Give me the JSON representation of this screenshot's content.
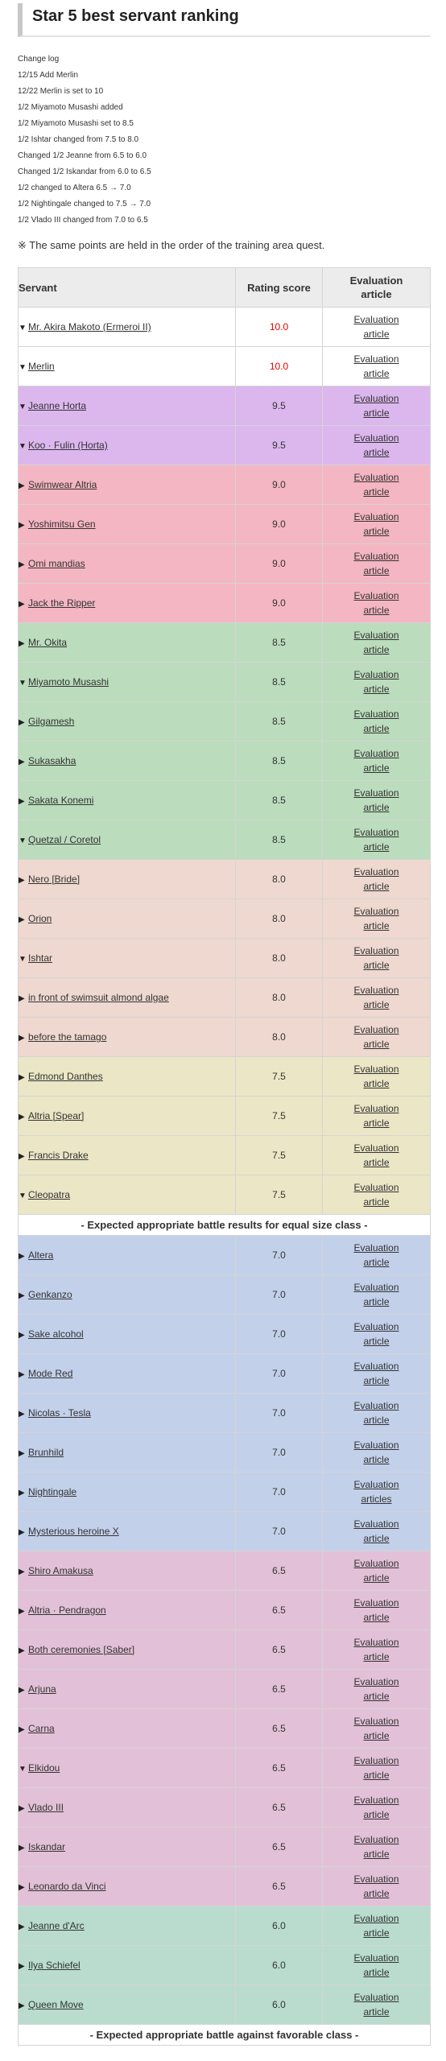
{
  "title": "Star 5 best servant ranking",
  "changelog": [
    "Change log",
    "12/15 Add Merlin",
    "12/22 Merlin is set to 10",
    "1/2 Miyamoto Musashi added",
    "1/2 Miyamoto Musashi set to 8.5",
    "1/2 Ishtar changed from 7.5 to 8.0",
    "Changed 1/2 Jeanne from 6.5 to 6.0",
    "Changed 1/2 Iskandar from 6.0 to 6.5",
    "1/2 changed to Altera 6.5 → 7.0",
    "1/2 Nightingale changed to 7.5 → 7.0",
    "1/2 Vlado III changed from 7.0 to 6.5"
  ],
  "note": "※ The same points are held in the order of the training area quest.",
  "table": {
    "headers": {
      "servant": "Servant",
      "score": "Rating score",
      "eval_line1": "Evaluation",
      "eval_line2": "article"
    },
    "rows": [
      {
        "type": "servant",
        "name": "Mr. Akira Makoto (Ermeroi II)",
        "score": "10.0",
        "open": true,
        "bg": "#ffffff",
        "red": true,
        "eval1": "Evaluation",
        "eval2": "article"
      },
      {
        "type": "servant",
        "name": "Merlin",
        "score": "10.0",
        "open": true,
        "bg": "#ffffff",
        "red": true,
        "eval1": "Evaluation",
        "eval2": "article"
      },
      {
        "type": "servant",
        "name": "Jeanne Horta",
        "score": "9.5",
        "open": true,
        "bg": "#dcb7ee",
        "eval1": "Evaluation",
        "eval2": "article"
      },
      {
        "type": "servant",
        "name": "Koo · Fulin (Horta)",
        "score": "9.5",
        "open": true,
        "bg": "#dcb7ee",
        "eval1": "Evaluation",
        "eval2": "article"
      },
      {
        "type": "servant",
        "name": "Swimwear Altria",
        "score": "9.0",
        "open": false,
        "bg": "#f4b6c2",
        "eval1": "Evaluation",
        "eval2": "article"
      },
      {
        "type": "servant",
        "name": "Yoshimitsu Gen",
        "score": "9.0",
        "open": false,
        "bg": "#f4b6c2",
        "eval1": "Evaluation",
        "eval2": "article"
      },
      {
        "type": "servant",
        "name": "Omi mandias",
        "score": "9.0",
        "open": false,
        "bg": "#f4b6c2",
        "eval1": "Evaluation",
        "eval2": "article"
      },
      {
        "type": "servant",
        "name": "Jack the Ripper",
        "score": "9.0",
        "open": false,
        "bg": "#f4b6c2",
        "eval1": "Evaluation",
        "eval2": "article"
      },
      {
        "type": "servant",
        "name": "Mr. Okita",
        "score": "8.5",
        "open": false,
        "bg": "#bbdcbd",
        "eval1": "Evaluation",
        "eval2": "article"
      },
      {
        "type": "servant",
        "name": "Miyamoto Musashi",
        "score": "8.5",
        "open": true,
        "bg": "#bbdcbd",
        "eval1": "Evaluation",
        "eval2": "article"
      },
      {
        "type": "servant",
        "name": "Gilgamesh",
        "score": "8.5",
        "open": false,
        "bg": "#bbdcbd",
        "eval1": "Evaluation",
        "eval2": "article"
      },
      {
        "type": "servant",
        "name": "Sukasakha",
        "score": "8.5",
        "open": false,
        "bg": "#bbdcbd",
        "eval1": "Evaluation",
        "eval2": "article"
      },
      {
        "type": "servant",
        "name": "Sakata Konemi",
        "score": "8.5",
        "open": false,
        "bg": "#bbdcbd",
        "eval1": "Evaluation",
        "eval2": "article"
      },
      {
        "type": "servant",
        "name": "Quetzal / Coretol",
        "score": "8.5",
        "open": true,
        "bg": "#bbdcbd",
        "eval1": "Evaluation",
        "eval2": "article"
      },
      {
        "type": "servant",
        "name": "Nero [Bride]",
        "score": "8.0",
        "open": false,
        "bg": "#eed8cf",
        "eval1": "Evaluation",
        "eval2": "article"
      },
      {
        "type": "servant",
        "name": "Orion",
        "score": "8.0",
        "open": false,
        "bg": "#eed8cf",
        "eval1": "Evaluation",
        "eval2": "article"
      },
      {
        "type": "servant",
        "name": "Ishtar",
        "score": "8.0",
        "open": true,
        "bg": "#eed8cf",
        "eval1": "Evaluation",
        "eval2": "article"
      },
      {
        "type": "servant",
        "name": "in front of swimsuit almond algae",
        "score": "8.0",
        "open": false,
        "bg": "#eed8cf",
        "eval1": "Evaluation",
        "eval2": "article"
      },
      {
        "type": "servant",
        "name": "before the tamago",
        "score": "8.0",
        "open": false,
        "bg": "#eed8cf",
        "eval1": "Evaluation",
        "eval2": "article"
      },
      {
        "type": "servant",
        "name": "Edmond Danthes",
        "score": "7.5",
        "open": false,
        "bg": "#ebe6c6",
        "eval1": "Evaluation",
        "eval2": "article"
      },
      {
        "type": "servant",
        "name": "Altria [Spear]",
        "score": "7.5",
        "open": false,
        "bg": "#ebe6c6",
        "eval1": "Evaluation",
        "eval2": "article"
      },
      {
        "type": "servant",
        "name": "Francis Drake",
        "score": "7.5",
        "open": false,
        "bg": "#ebe6c6",
        "eval1": "Evaluation",
        "eval2": "article"
      },
      {
        "type": "servant",
        "name": "Cleopatra",
        "score": "7.5",
        "open": true,
        "bg": "#ebe6c6",
        "eval1": "Evaluation",
        "eval2": "article"
      },
      {
        "type": "separator",
        "text": "- Expected appropriate battle results for equal size class -"
      },
      {
        "type": "servant",
        "name": "Altera",
        "score": "7.0",
        "open": false,
        "bg": "#c3d0ea",
        "eval1": "Evaluation",
        "eval2": "article"
      },
      {
        "type": "servant",
        "name": "Genkanzo",
        "score": "7.0",
        "open": false,
        "bg": "#c3d0ea",
        "eval1": "Evaluation",
        "eval2": "article"
      },
      {
        "type": "servant",
        "name": "Sake alcohol",
        "score": "7.0",
        "open": false,
        "bg": "#c3d0ea",
        "eval1": "Evaluation",
        "eval2": "article"
      },
      {
        "type": "servant",
        "name": "Mode Red",
        "score": "7.0",
        "open": false,
        "bg": "#c3d0ea",
        "eval1": "Evaluation",
        "eval2": "article"
      },
      {
        "type": "servant",
        "name": "Nicolas · Tesla",
        "score": "7.0",
        "open": false,
        "bg": "#c3d0ea",
        "eval1": "Evaluation",
        "eval2": "article"
      },
      {
        "type": "servant",
        "name": "Brunhild",
        "score": "7.0",
        "open": false,
        "bg": "#c3d0ea",
        "eval1": "Evaluation",
        "eval2": "article"
      },
      {
        "type": "servant",
        "name": "Nightingale",
        "score": "7.0",
        "open": false,
        "bg": "#c3d0ea",
        "eval1": "Evaluation",
        "eval2": "articles"
      },
      {
        "type": "servant",
        "name": "Mysterious heroine X",
        "score": "7.0",
        "open": false,
        "bg": "#c3d0ea",
        "eval1": "Evaluation",
        "eval2": "article"
      },
      {
        "type": "servant",
        "name": "Shiro Amakusa",
        "score": "6.5",
        "open": false,
        "bg": "#e2c1d8",
        "eval1": "Evaluation",
        "eval2": "article"
      },
      {
        "type": "servant",
        "name": "Altria · Pendragon",
        "score": "6.5",
        "open": false,
        "bg": "#e2c1d8",
        "eval1": "Evaluation",
        "eval2": "article"
      },
      {
        "type": "servant",
        "name": "Both ceremonies [Saber]",
        "score": "6.5",
        "open": false,
        "bg": "#e2c1d8",
        "eval1": "Evaluation",
        "eval2": "article"
      },
      {
        "type": "servant",
        "name": "Arjuna",
        "score": "6.5",
        "open": false,
        "bg": "#e2c1d8",
        "eval1": "Evaluation",
        "eval2": "article"
      },
      {
        "type": "servant",
        "name": "Carna",
        "score": "6.5",
        "open": false,
        "bg": "#e2c1d8",
        "eval1": "Evaluation",
        "eval2": "article"
      },
      {
        "type": "servant",
        "name": "Elkidou",
        "score": "6.5",
        "open": true,
        "bg": "#e2c1d8",
        "eval1": "Evaluation",
        "eval2": "article"
      },
      {
        "type": "servant",
        "name": "Vlado III",
        "score": "6.5",
        "open": false,
        "bg": "#e2c1d8",
        "eval1": "Evaluation",
        "eval2": "article"
      },
      {
        "type": "servant",
        "name": "Iskandar",
        "score": "6.5",
        "open": false,
        "bg": "#e2c1d8",
        "eval1": "Evaluation",
        "eval2": "article"
      },
      {
        "type": "servant",
        "name": "Leonardo da Vinci",
        "score": "6.5",
        "open": false,
        "bg": "#e2c1d8",
        "eval1": "Evaluation",
        "eval2": "article"
      },
      {
        "type": "servant",
        "name": "Jeanne d'Arc",
        "score": "6.0",
        "open": false,
        "bg": "#b9dccf",
        "eval1": "Evaluation",
        "eval2": "article"
      },
      {
        "type": "servant",
        "name": "Ilya Schiefel",
        "score": "6.0",
        "open": false,
        "bg": "#b9dccf",
        "eval1": "Evaluation",
        "eval2": "article"
      },
      {
        "type": "servant",
        "name": "Queen Move",
        "score": "6.0",
        "open": false,
        "bg": "#b9dccf",
        "eval1": "Evaluation",
        "eval2": "article"
      },
      {
        "type": "separator",
        "text": "- Expected appropriate battle against favorable class -"
      }
    ]
  }
}
